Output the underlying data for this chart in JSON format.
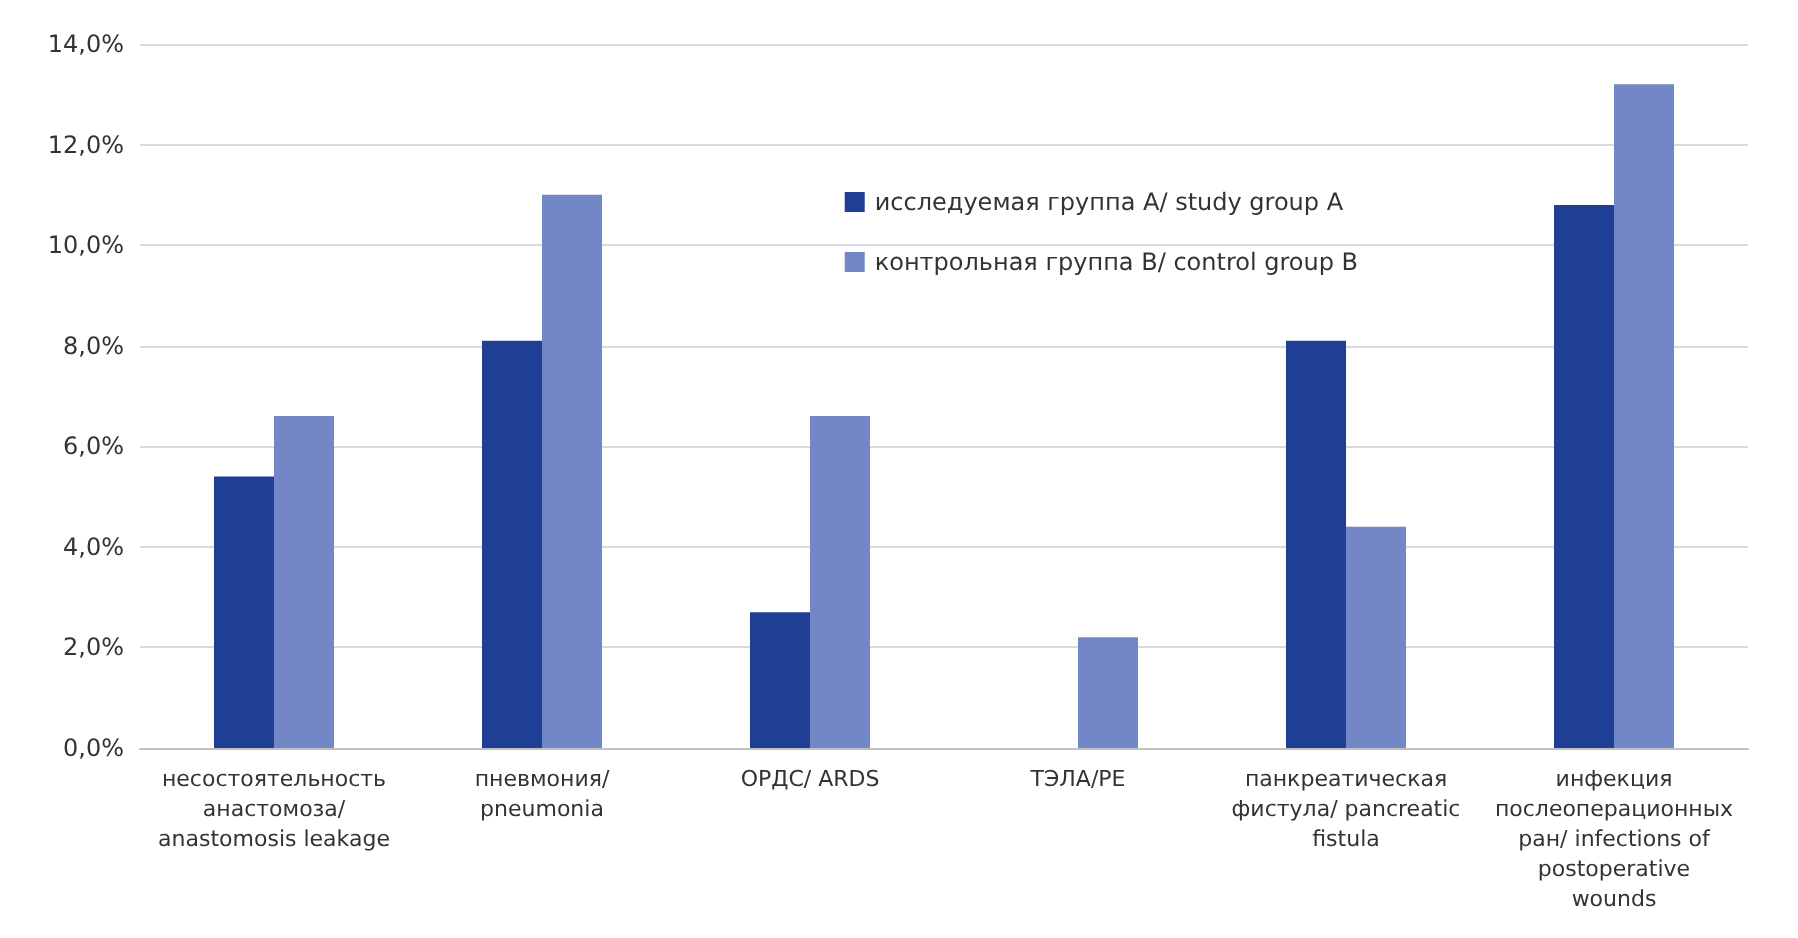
{
  "chart_data": {
    "type": "bar",
    "categories": [
      "несостоятельность анастомоза/ anastomosis leakage",
      "пневмония/ pneumonia",
      "ОРДС/ ARDS",
      "ТЭЛА/PE",
      "панкреатическая фистула/ pancreatic fistula",
      "инфекция послеоперационных ран/ infections of postoperative wounds"
    ],
    "series": [
      {
        "name": "исследуемая группа А/ study group A",
        "color": "#1f3f94",
        "values": [
          5.4,
          8.1,
          2.7,
          0,
          8.1,
          10.8
        ]
      },
      {
        "name": "контрольная группа В/ control group B",
        "color": "#7387c6",
        "values": [
          6.6,
          11.0,
          6.6,
          2.2,
          4.4,
          13.2
        ]
      }
    ],
    "ylim": [
      0,
      14
    ],
    "yticks": [
      {
        "value": 0,
        "label": "0,0%"
      },
      {
        "value": 2,
        "label": "2,0%"
      },
      {
        "value": 4,
        "label": "4,0%"
      },
      {
        "value": 6,
        "label": "6,0%"
      },
      {
        "value": 8,
        "label": "8,0%"
      },
      {
        "value": 10,
        "label": "10,0%"
      },
      {
        "value": 12,
        "label": "12,0%"
      },
      {
        "value": 14,
        "label": "14,0%"
      }
    ],
    "grid": "y",
    "legend": "top right"
  }
}
